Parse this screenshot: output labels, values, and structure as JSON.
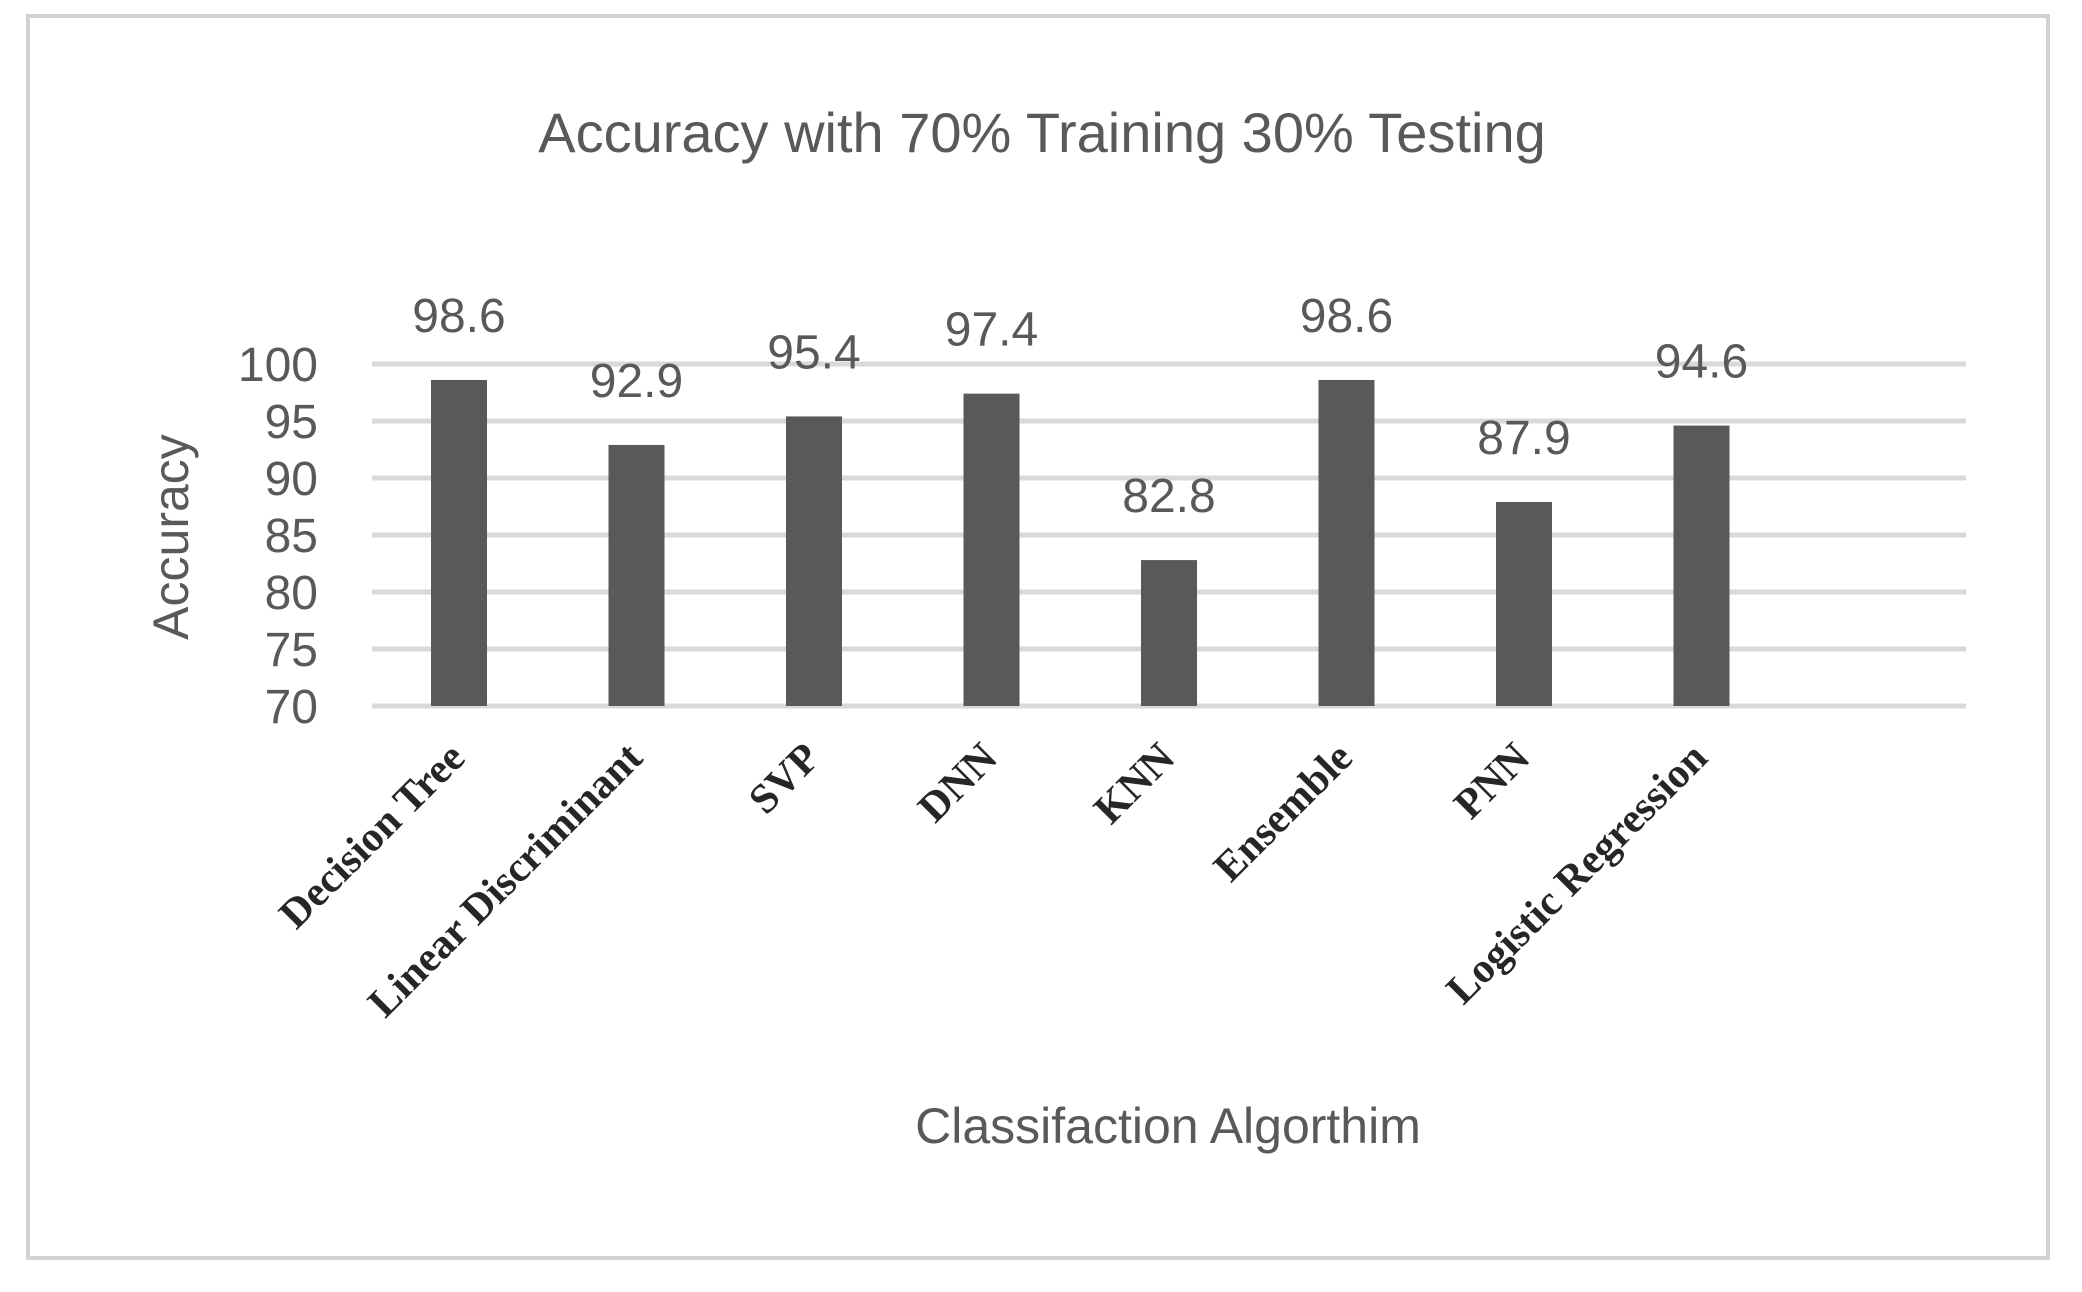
{
  "chart_data": {
    "type": "bar",
    "title": "Accuracy with 70% Training 30% Testing",
    "xlabel": "Classifaction Algorthim",
    "ylabel": "Accuracy",
    "categories": [
      "Decision Tree",
      "Linear Discriminant",
      "SVP",
      "DNN",
      "KNN",
      "Ensemble",
      "PNN",
      "Logistic Regression"
    ],
    "values": [
      98.6,
      92.9,
      95.4,
      97.4,
      82.8,
      98.6,
      87.9,
      94.6
    ],
    "data_labels": [
      "98.6",
      "92.9",
      "95.4",
      "97.4",
      "82.8",
      "98.6",
      "87.9",
      "94.6"
    ],
    "ylim": [
      70,
      100
    ],
    "yticks": [
      "70",
      "75",
      "80",
      "85",
      "90",
      "95",
      "100"
    ],
    "grid": true,
    "legend": "none",
    "colors": {
      "bar": "#595959",
      "grid": "#d9d9d9",
      "text": "#595959",
      "category_text": "#262626",
      "frame": "#d3d3d3"
    }
  }
}
